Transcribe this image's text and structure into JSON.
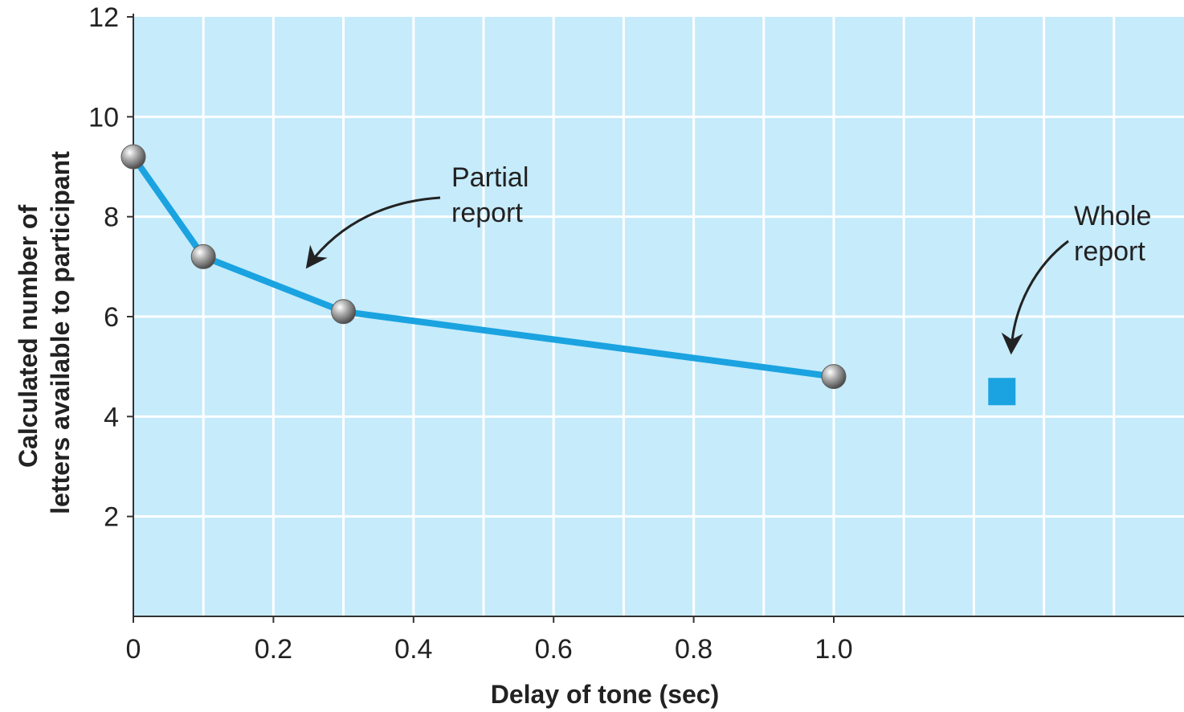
{
  "chart_data": {
    "type": "line",
    "title": "",
    "xlabel": "Delay of tone (sec)",
    "ylabel_lines": [
      "Calculated number of",
      "letters available to participant"
    ],
    "xlim": [
      0,
      1.5
    ],
    "ylim": [
      0,
      12
    ],
    "x_ticks": [
      0,
      0.2,
      0.4,
      0.6,
      0.8,
      1.0
    ],
    "x_tick_labels": [
      "0",
      "0.2",
      "0.4",
      "0.6",
      "0.8",
      "1.0"
    ],
    "y_ticks": [
      2,
      4,
      6,
      8,
      10,
      12
    ],
    "y_tick_labels": [
      "2",
      "4",
      "6",
      "8",
      "10",
      "12"
    ],
    "grid": true,
    "series": [
      {
        "name": "Partial report",
        "x": [
          0,
          0.1,
          0.3,
          1.0
        ],
        "y": [
          9.2,
          7.2,
          6.1,
          4.8
        ],
        "color": "#1aa3e0"
      }
    ],
    "points": [
      {
        "name": "Whole report",
        "x": 1.24,
        "y": 4.5,
        "color": "#1aa3e0"
      }
    ],
    "annotations": [
      {
        "lines": [
          "Partial",
          "report"
        ],
        "target": "partial"
      },
      {
        "lines": [
          "Whole",
          "report"
        ],
        "target": "whole"
      }
    ],
    "colors": {
      "plot_bg": "#c6ebfb",
      "grid": "#ffffff",
      "marker": "#8f8f8f",
      "axis": "#333333"
    }
  }
}
